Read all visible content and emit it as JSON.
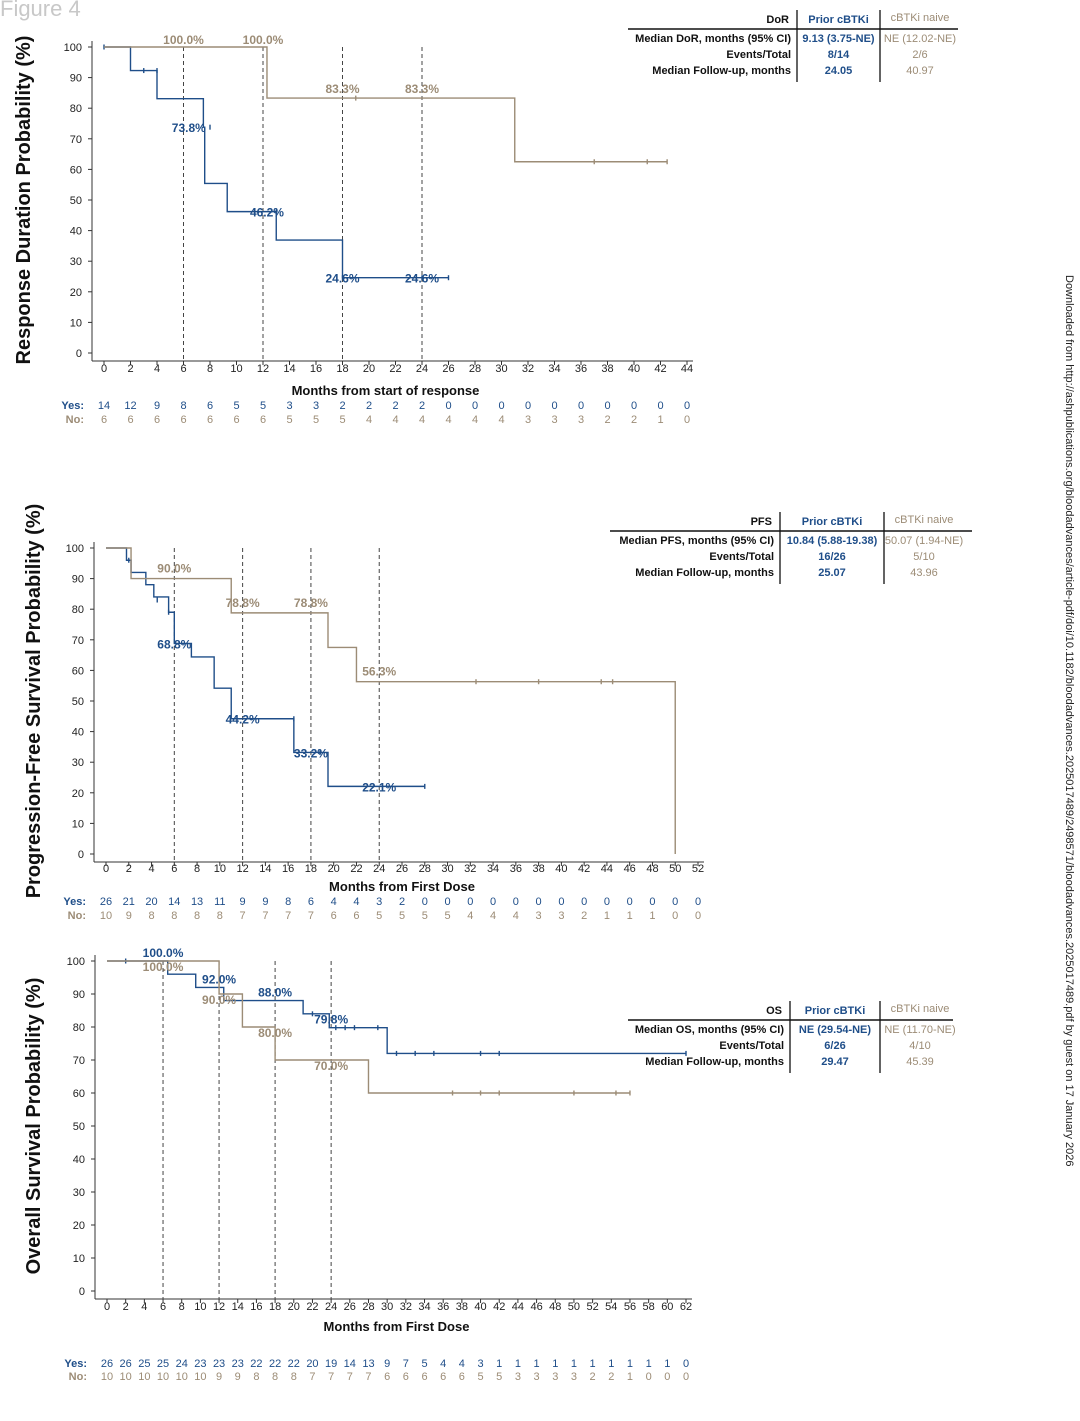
{
  "figure_label": "Figure 4",
  "side_note": "Downloaded from http://ashpublications.org/bloodadvances/article-pdf/doi/10.1182/bloodadvances.2025017489/2498571/bloodadvances.2025017489.pdf by guest on 17 January 2026",
  "colors": {
    "prior": "#1f4e89",
    "naive": "#9c8c76",
    "axis": "#333333"
  },
  "chart_data": [
    {
      "type": "line",
      "ylabel": "Response Duration Probability (%)",
      "xlabel": "Months from start of response",
      "xlim": [
        0,
        44
      ],
      "ylim": [
        0,
        100
      ],
      "xticks": [
        0,
        2,
        4,
        6,
        8,
        10,
        12,
        14,
        16,
        18,
        20,
        22,
        24,
        26,
        28,
        30,
        32,
        34,
        36,
        38,
        40,
        42,
        44
      ],
      "yticks": [
        0,
        10,
        20,
        30,
        40,
        50,
        60,
        70,
        80,
        90,
        100
      ],
      "reference_lines_x": [
        6,
        12,
        18,
        24
      ],
      "series": [
        {
          "name": "Prior cBTKi",
          "color": "#1f4e89",
          "steps": [
            [
              0,
              100
            ],
            [
              2,
              92.3
            ],
            [
              4,
              83.1
            ],
            [
              7.5,
              73.8
            ],
            [
              7.6,
              55.4
            ],
            [
              9.3,
              46.2
            ],
            [
              13,
              36.9
            ],
            [
              18,
              24.6
            ],
            [
              26,
              24.6
            ]
          ],
          "censors": [
            [
              0,
              100
            ],
            [
              3,
              92.3
            ],
            [
              4,
              92.3
            ],
            [
              8,
              73.8
            ],
            [
              13,
              46.2
            ],
            [
              18,
              24.6
            ],
            [
              24,
              24.6
            ],
            [
              26,
              24.6
            ]
          ]
        },
        {
          "name": "cBTKi naive",
          "color": "#9c8c76",
          "steps": [
            [
              0,
              100
            ],
            [
              12.3,
              83.3
            ],
            [
              31,
              62.5
            ],
            [
              42.5,
              62.5
            ]
          ],
          "censors": [
            [
              19,
              83.3
            ],
            [
              37,
              62.5
            ],
            [
              41,
              62.5
            ],
            [
              42.5,
              62.5
            ]
          ]
        }
      ],
      "annotations": [
        {
          "text": "100.0%",
          "x": 6,
          "y": 100,
          "series": "cBTKi naive"
        },
        {
          "text": "100.0%",
          "x": 12,
          "y": 100,
          "series": "cBTKi naive"
        },
        {
          "text": "83.3%",
          "x": 18,
          "y": 83.3,
          "series": "cBTKi naive"
        },
        {
          "text": "83.3%",
          "x": 24,
          "y": 83.3,
          "series": "cBTKi naive"
        },
        {
          "text": "73.8%",
          "x": 6.4,
          "y": 73.8,
          "series": "Prior cBTKi"
        },
        {
          "text": "46.2%",
          "x": 12.3,
          "y": 46.2,
          "series": "Prior cBTKi"
        },
        {
          "text": "24.6%",
          "x": 18,
          "y": 24.6,
          "series": "Prior cBTKi"
        },
        {
          "text": "24.6%",
          "x": 24,
          "y": 24.6,
          "series": "Prior cBTKi"
        }
      ],
      "risk_table": {
        "yes_label": "Yes:",
        "no_label": "No:",
        "yes": [
          14,
          12,
          9,
          8,
          6,
          5,
          5,
          3,
          3,
          2,
          2,
          2,
          2,
          0,
          0,
          0,
          0,
          0,
          0,
          0,
          0,
          0,
          0
        ],
        "no": [
          6,
          6,
          6,
          6,
          6,
          6,
          6,
          5,
          5,
          5,
          4,
          4,
          4,
          4,
          4,
          4,
          3,
          3,
          3,
          2,
          2,
          1,
          0
        ]
      },
      "summary_table": {
        "header": [
          "DoR",
          "Prior cBTKi",
          "cBTKi naive"
        ],
        "rows": [
          [
            "Median DoR, months (95% CI)",
            "9.13 (3.75-NE)",
            "NE (12.02-NE)"
          ],
          [
            "Events/Total",
            "8/14",
            "2/6"
          ],
          [
            "Median Follow-up, months",
            "24.05",
            "40.97"
          ]
        ]
      }
    },
    {
      "type": "line",
      "ylabel": "Progression-Free Survival Probability (%)",
      "xlabel": "Months from First Dose",
      "xlim": [
        0,
        52
      ],
      "ylim": [
        0,
        100
      ],
      "xticks": [
        0,
        2,
        4,
        6,
        8,
        10,
        12,
        14,
        16,
        18,
        20,
        22,
        24,
        26,
        28,
        30,
        32,
        34,
        36,
        38,
        40,
        42,
        44,
        46,
        48,
        50,
        52
      ],
      "yticks": [
        0,
        10,
        20,
        30,
        40,
        50,
        60,
        70,
        80,
        90,
        100
      ],
      "reference_lines_x": [
        6,
        12,
        18,
        24
      ],
      "series": [
        {
          "name": "Prior cBTKi",
          "color": "#1f4e89",
          "steps": [
            [
              0,
              100
            ],
            [
              1.8,
              96
            ],
            [
              2.2,
              92
            ],
            [
              3.5,
              88
            ],
            [
              4.2,
              84
            ],
            [
              5.5,
              79
            ],
            [
              6,
              68.8
            ],
            [
              7.5,
              64.4
            ],
            [
              9.5,
              54.2
            ],
            [
              11,
              44.2
            ],
            [
              16.5,
              33.2
            ],
            [
              19.5,
              22.1
            ],
            [
              28,
              22.1
            ]
          ],
          "censors": [
            [
              2,
              96
            ],
            [
              4.5,
              83
            ],
            [
              5.5,
              79
            ],
            [
              16.5,
              44.2
            ],
            [
              18.8,
              33.2
            ],
            [
              28,
              22.1
            ]
          ]
        },
        {
          "name": "cBTKi naive",
          "color": "#9c8c76",
          "steps": [
            [
              0,
              100
            ],
            [
              2.2,
              90
            ],
            [
              11,
              78.8
            ],
            [
              19.5,
              67.5
            ],
            [
              22,
              56.3
            ],
            [
              50,
              56.3
            ],
            [
              50,
              0
            ]
          ],
          "censors": [
            [
              32.5,
              56.3
            ],
            [
              38,
              56.3
            ],
            [
              43.5,
              56.3
            ],
            [
              44.5,
              56.3
            ]
          ]
        }
      ],
      "annotations": [
        {
          "text": "90.0%",
          "x": 6,
          "y": 90,
          "series": "cBTKi naive"
        },
        {
          "text": "78.8%",
          "x": 12,
          "y": 78.8,
          "series": "cBTKi naive"
        },
        {
          "text": "78.8%",
          "x": 18,
          "y": 78.8,
          "series": "cBTKi naive"
        },
        {
          "text": "56.3%",
          "x": 24,
          "y": 56.3,
          "series": "cBTKi naive"
        },
        {
          "text": "68.8%",
          "x": 6,
          "y": 68.8,
          "series": "Prior cBTKi"
        },
        {
          "text": "44.2%",
          "x": 12,
          "y": 44.2,
          "series": "Prior cBTKi"
        },
        {
          "text": "33.2%",
          "x": 18,
          "y": 33.2,
          "series": "Prior cBTKi"
        },
        {
          "text": "22.1%",
          "x": 24,
          "y": 22.1,
          "series": "Prior cBTKi"
        }
      ],
      "risk_table": {
        "yes_label": "Yes:",
        "no_label": "No:",
        "yes": [
          26,
          21,
          20,
          14,
          13,
          11,
          9,
          9,
          8,
          6,
          4,
          4,
          3,
          2,
          0,
          0,
          0,
          0,
          0,
          0,
          0,
          0,
          0,
          0,
          0,
          0,
          0
        ],
        "no": [
          10,
          9,
          8,
          8,
          8,
          8,
          7,
          7,
          7,
          7,
          6,
          6,
          5,
          5,
          5,
          5,
          4,
          4,
          4,
          3,
          3,
          2,
          1,
          1,
          1,
          0,
          0
        ]
      },
      "summary_table": {
        "header": [
          "PFS",
          "Prior cBTKi",
          "cBTKi naive"
        ],
        "rows": [
          [
            "Median PFS, months (95% CI)",
            "10.84 (5.88-19.38)",
            "50.07 (1.94-NE)"
          ],
          [
            "Events/Total",
            "16/26",
            "5/10"
          ],
          [
            "Median Follow-up, months",
            "25.07",
            "43.96"
          ]
        ]
      }
    },
    {
      "type": "line",
      "ylabel": "Overall Survival Probability (%)",
      "xlabel": "Months from First Dose",
      "xlim": [
        0,
        62
      ],
      "ylim": [
        0,
        100
      ],
      "xticks": [
        0,
        2,
        4,
        6,
        8,
        10,
        12,
        14,
        16,
        18,
        20,
        22,
        24,
        26,
        28,
        30,
        32,
        34,
        36,
        38,
        40,
        42,
        44,
        46,
        48,
        50,
        52,
        54,
        56,
        58,
        60,
        62
      ],
      "yticks": [
        0,
        10,
        20,
        30,
        40,
        50,
        60,
        70,
        80,
        90,
        100
      ],
      "reference_lines_x": [
        6,
        12,
        18,
        24
      ],
      "series": [
        {
          "name": "Prior cBTKi",
          "color": "#1f4e89",
          "steps": [
            [
              0,
              100
            ],
            [
              6.5,
              96
            ],
            [
              9.5,
              92
            ],
            [
              12.5,
              88
            ],
            [
              21,
              84
            ],
            [
              23.8,
              79.8
            ],
            [
              30,
              72
            ],
            [
              62,
              72
            ]
          ],
          "censors": [
            [
              2,
              100
            ],
            [
              22,
              84
            ],
            [
              24.5,
              79.8
            ],
            [
              25.5,
              79.8
            ],
            [
              26.5,
              79.8
            ],
            [
              29,
              79.8
            ],
            [
              31,
              72
            ],
            [
              33,
              72
            ],
            [
              35,
              72
            ],
            [
              40,
              72
            ],
            [
              42,
              72
            ],
            [
              62,
              72
            ]
          ]
        },
        {
          "name": "cBTKi naive",
          "color": "#9c8c76",
          "steps": [
            [
              0,
              100
            ],
            [
              12,
              90
            ],
            [
              14.5,
              80
            ],
            [
              18,
              70
            ],
            [
              28,
              60
            ],
            [
              56,
              60
            ]
          ],
          "censors": [
            [
              37,
              60
            ],
            [
              40,
              60
            ],
            [
              42,
              60
            ],
            [
              50,
              60
            ],
            [
              54.5,
              60
            ],
            [
              56,
              60
            ]
          ]
        }
      ],
      "annotations": [
        {
          "text": "100.0%",
          "x": 6,
          "y": 100,
          "series": "Prior cBTKi"
        },
        {
          "text": "92.0%",
          "x": 12,
          "y": 92,
          "series": "Prior cBTKi"
        },
        {
          "text": "88.0%",
          "x": 18,
          "y": 88,
          "series": "Prior cBTKi"
        },
        {
          "text": "79.8%",
          "x": 24,
          "y": 79.8,
          "series": "Prior cBTKi"
        },
        {
          "text": "100.0%",
          "x": 6,
          "y": 100,
          "series": "cBTKi naive"
        },
        {
          "text": "90.0%",
          "x": 12,
          "y": 90,
          "series": "cBTKi naive"
        },
        {
          "text": "80.0%",
          "x": 18,
          "y": 80,
          "series": "cBTKi naive"
        },
        {
          "text": "70.0%",
          "x": 24,
          "y": 70,
          "series": "cBTKi naive"
        }
      ],
      "risk_table": {
        "yes_label": "Yes:",
        "no_label": "No:",
        "yes": [
          26,
          26,
          25,
          25,
          24,
          23,
          23,
          23,
          22,
          22,
          22,
          20,
          19,
          14,
          13,
          9,
          7,
          5,
          4,
          4,
          3,
          1,
          1,
          1,
          1,
          1,
          1,
          1,
          1,
          1,
          1,
          0
        ],
        "no": [
          10,
          10,
          10,
          10,
          10,
          10,
          9,
          9,
          8,
          8,
          8,
          7,
          7,
          7,
          7,
          6,
          6,
          6,
          6,
          6,
          5,
          5,
          3,
          3,
          3,
          3,
          2,
          2,
          1,
          0,
          0,
          0
        ]
      },
      "summary_table": {
        "header": [
          "OS",
          "Prior cBTKi",
          "cBTKi naive"
        ],
        "rows": [
          [
            "Median OS, months (95% CI)",
            "NE (29.54-NE)",
            "NE (11.70-NE)"
          ],
          [
            "Events/Total",
            "6/26",
            "4/10"
          ],
          [
            "Median Follow-up, months",
            "29.47",
            "45.39"
          ]
        ]
      }
    }
  ]
}
